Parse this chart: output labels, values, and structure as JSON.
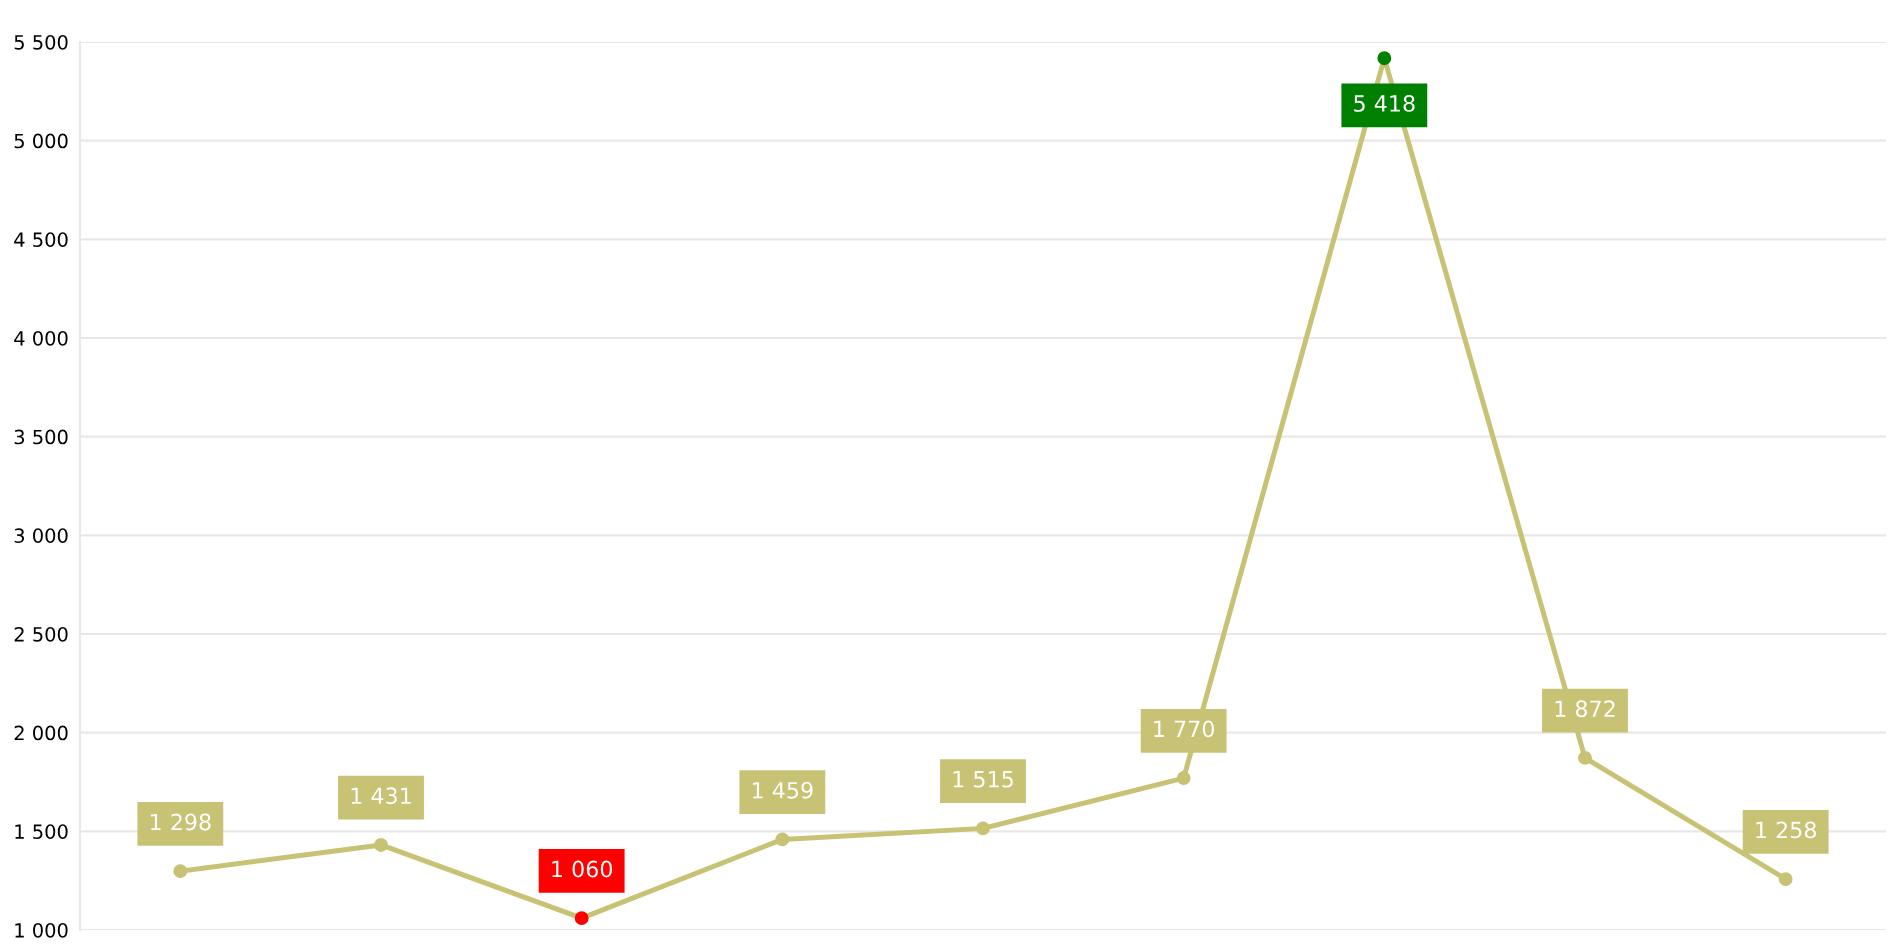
{
  "chart_data": {
    "type": "line",
    "categories": [
      null,
      null,
      null,
      null,
      null,
      null,
      null,
      null,
      null
    ],
    "series": [
      {
        "color": "#c8c275",
        "colors": [
          "#c8c275",
          "#c8c275",
          "#ff0000",
          "#c8c275",
          "#c8c275",
          "#c8c275",
          "#008000",
          "#c8c275",
          "#c8c275"
        ],
        "values": [
          1298,
          1431,
          1060,
          1459,
          1515,
          1770,
          5418,
          1872,
          1258
        ],
        "value_labels": [
          "1 298",
          "1 431",
          "1 060",
          "1 459",
          "1 515",
          "1 770",
          "5 418",
          "1 872",
          "1 258"
        ]
      }
    ],
    "ylim": [
      1000,
      5500
    ],
    "yticks": [
      {
        "value": 1000,
        "label": "1 000"
      },
      {
        "value": 1500,
        "label": "1 500"
      },
      {
        "value": 2000,
        "label": "2 000"
      },
      {
        "value": 2500,
        "label": "2 500"
      },
      {
        "value": 3000,
        "label": "3 000"
      },
      {
        "value": 3500,
        "label": "3 500"
      },
      {
        "value": 4000,
        "label": "4 000"
      },
      {
        "value": 4500,
        "label": "4 500"
      },
      {
        "value": 5000,
        "label": "5 000"
      },
      {
        "value": 5500,
        "label": "5 500"
      }
    ],
    "grid": "y",
    "marker": "circle",
    "line_style": "solid",
    "legend": false
  }
}
